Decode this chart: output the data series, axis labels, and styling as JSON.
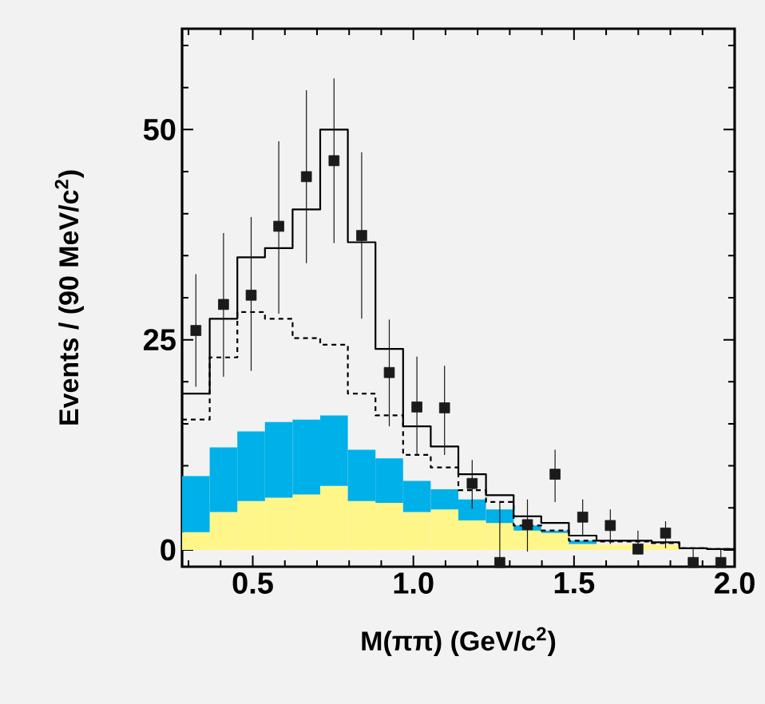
{
  "chart_data": {
    "type": "bar",
    "xlabel": "M(ππ) (GeV/c$^{2}$)",
    "ylabel": "Events / (90 MeV/c$^{2}$)",
    "stacked": true,
    "series": [
      {
        "color": "#fff68a",
        "x": [
          0.323,
          0.409,
          0.495,
          0.581,
          0.667,
          0.753,
          0.839,
          0.925,
          1.011,
          1.097,
          1.183,
          1.269,
          1.355,
          1.441,
          1.527,
          1.613,
          1.699,
          1.785,
          1.871,
          1.957
        ],
        "values": [
          2.1,
          4.5,
          5.8,
          6.2,
          6.6,
          7.6,
          5.8,
          5.6,
          4.5,
          4.8,
          3.5,
          3.2,
          2.3,
          2.0,
          0.7,
          0.6,
          0.6,
          0.6,
          0,
          0
        ]
      },
      {
        "color": "#00b0e8",
        "x": [
          0.323,
          0.409,
          0.495,
          0.581,
          0.667,
          0.753,
          0.839,
          0.925,
          1.011,
          1.097,
          1.183,
          1.269,
          1.355,
          1.441,
          1.527,
          1.613,
          1.699,
          1.785,
          1.871,
          1.957
        ],
        "values": [
          6.7,
          7.7,
          8.3,
          9.0,
          8.9,
          8.4,
          6.1,
          5.3,
          3.7,
          2.4,
          2.5,
          1.6,
          0.6,
          0.3,
          0.4,
          0,
          0,
          0,
          0,
          0
        ]
      },
      {
        "type": "step",
        "color": "#000000",
        "line_style": "dashed",
        "x": [
          0.28,
          0.366,
          0.452,
          0.538,
          0.624,
          0.71,
          0.796,
          0.882,
          0.968,
          1.054,
          1.14,
          1.226,
          1.312,
          1.398,
          1.484,
          1.57,
          1.656,
          1.742,
          1.828,
          1.914,
          2.0
        ],
        "values": [
          15.5,
          22.9,
          28.3,
          27.5,
          25.2,
          24.4,
          18.6,
          16.0,
          11.3,
          9.8,
          7.1,
          5.7,
          2.9,
          2.3,
          1.1,
          1.0,
          1.0,
          0.8,
          0.2,
          0.1,
          0.1
        ]
      },
      {
        "type": "step",
        "color": "#000000",
        "line_style": "solid",
        "x": [
          0.28,
          0.366,
          0.452,
          0.538,
          0.624,
          0.71,
          0.796,
          0.882,
          0.968,
          1.054,
          1.14,
          1.226,
          1.312,
          1.398,
          1.484,
          1.57,
          1.656,
          1.742,
          1.828,
          1.914,
          2.0
        ],
        "values": [
          18.6,
          27.5,
          34.8,
          35.9,
          40.5,
          50.0,
          36.6,
          23.9,
          14.7,
          12.3,
          9.0,
          6.5,
          4.0,
          3.2,
          1.7,
          1.1,
          1.1,
          0.9,
          0.2,
          0.1,
          0.1
        ]
      },
      {
        "type": "scatter",
        "color": "#1a1a1a",
        "marker": "square",
        "x": [
          0.323,
          0.409,
          0.495,
          0.581,
          0.667,
          0.753,
          0.839,
          0.925,
          1.011,
          1.097,
          1.183,
          1.269,
          1.355,
          1.441,
          1.527,
          1.613,
          1.699,
          1.785,
          1.871,
          1.957
        ],
        "values": [
          26.1,
          29.2,
          30.3,
          38.5,
          44.4,
          46.3,
          37.4,
          21.1,
          17.0,
          16.9,
          7.9,
          -1.5,
          3.0,
          9.0,
          3.9,
          2.9,
          0.1,
          2.0,
          -1.5,
          -1.5
        ],
        "errors": [
          [
            19.4,
            32.8
          ],
          [
            20.6,
            37.7
          ],
          [
            21.3,
            39.6
          ],
          [
            28.1,
            48.6
          ],
          [
            34.1,
            54.7
          ],
          [
            36.5,
            56.1
          ],
          [
            27.5,
            47.3
          ],
          [
            14.7,
            27.4
          ],
          [
            11.3,
            23.0
          ],
          [
            11.3,
            21.9
          ],
          [
            4.9,
            10.7
          ],
          [
            -1.5,
            5.7
          ],
          [
            -0.2,
            6.0
          ],
          [
            5.7,
            11.9
          ],
          [
            1.7,
            6.0
          ],
          [
            0.7,
            4.8
          ],
          [
            -0.5,
            2.3
          ],
          [
            0.2,
            3.4
          ],
          [
            -1.5,
            0.1
          ],
          [
            -1.5,
            0.1
          ]
        ]
      }
    ],
    "xlim": [
      0.28,
      2.0
    ],
    "ylim": [
      -2,
      62
    ],
    "xticks": [
      {
        "value": 0.3,
        "label": null
      },
      {
        "value": 0.4,
        "label": null
      },
      {
        "value": 0.5,
        "label": "0.5"
      },
      {
        "value": 0.6,
        "label": null
      },
      {
        "value": 0.7,
        "label": null
      },
      {
        "value": 0.8,
        "label": null
      },
      {
        "value": 0.9,
        "label": null
      },
      {
        "value": 1.0,
        "label": "1.0"
      },
      {
        "value": 1.1,
        "label": null
      },
      {
        "value": 1.2,
        "label": null
      },
      {
        "value": 1.3,
        "label": null
      },
      {
        "value": 1.4,
        "label": null
      },
      {
        "value": 1.5,
        "label": "1.5"
      },
      {
        "value": 1.6,
        "label": null
      },
      {
        "value": 1.7,
        "label": null
      },
      {
        "value": 1.8,
        "label": null
      },
      {
        "value": 1.9,
        "label": null
      },
      {
        "value": 2.0,
        "label": "2.0"
      }
    ],
    "yticks": [
      0,
      {
        "value": 5,
        "label": null
      },
      {
        "value": 10,
        "label": null
      },
      {
        "value": 15,
        "label": null
      },
      {
        "value": 20,
        "label": null
      },
      25,
      {
        "value": 30,
        "label": null
      },
      {
        "value": 35,
        "label": null
      },
      {
        "value": 40,
        "label": null
      },
      {
        "value": 45,
        "label": null
      },
      50,
      {
        "value": 55,
        "label": null
      },
      {
        "value": 60,
        "label": null
      }
    ],
    "grid": false
  }
}
